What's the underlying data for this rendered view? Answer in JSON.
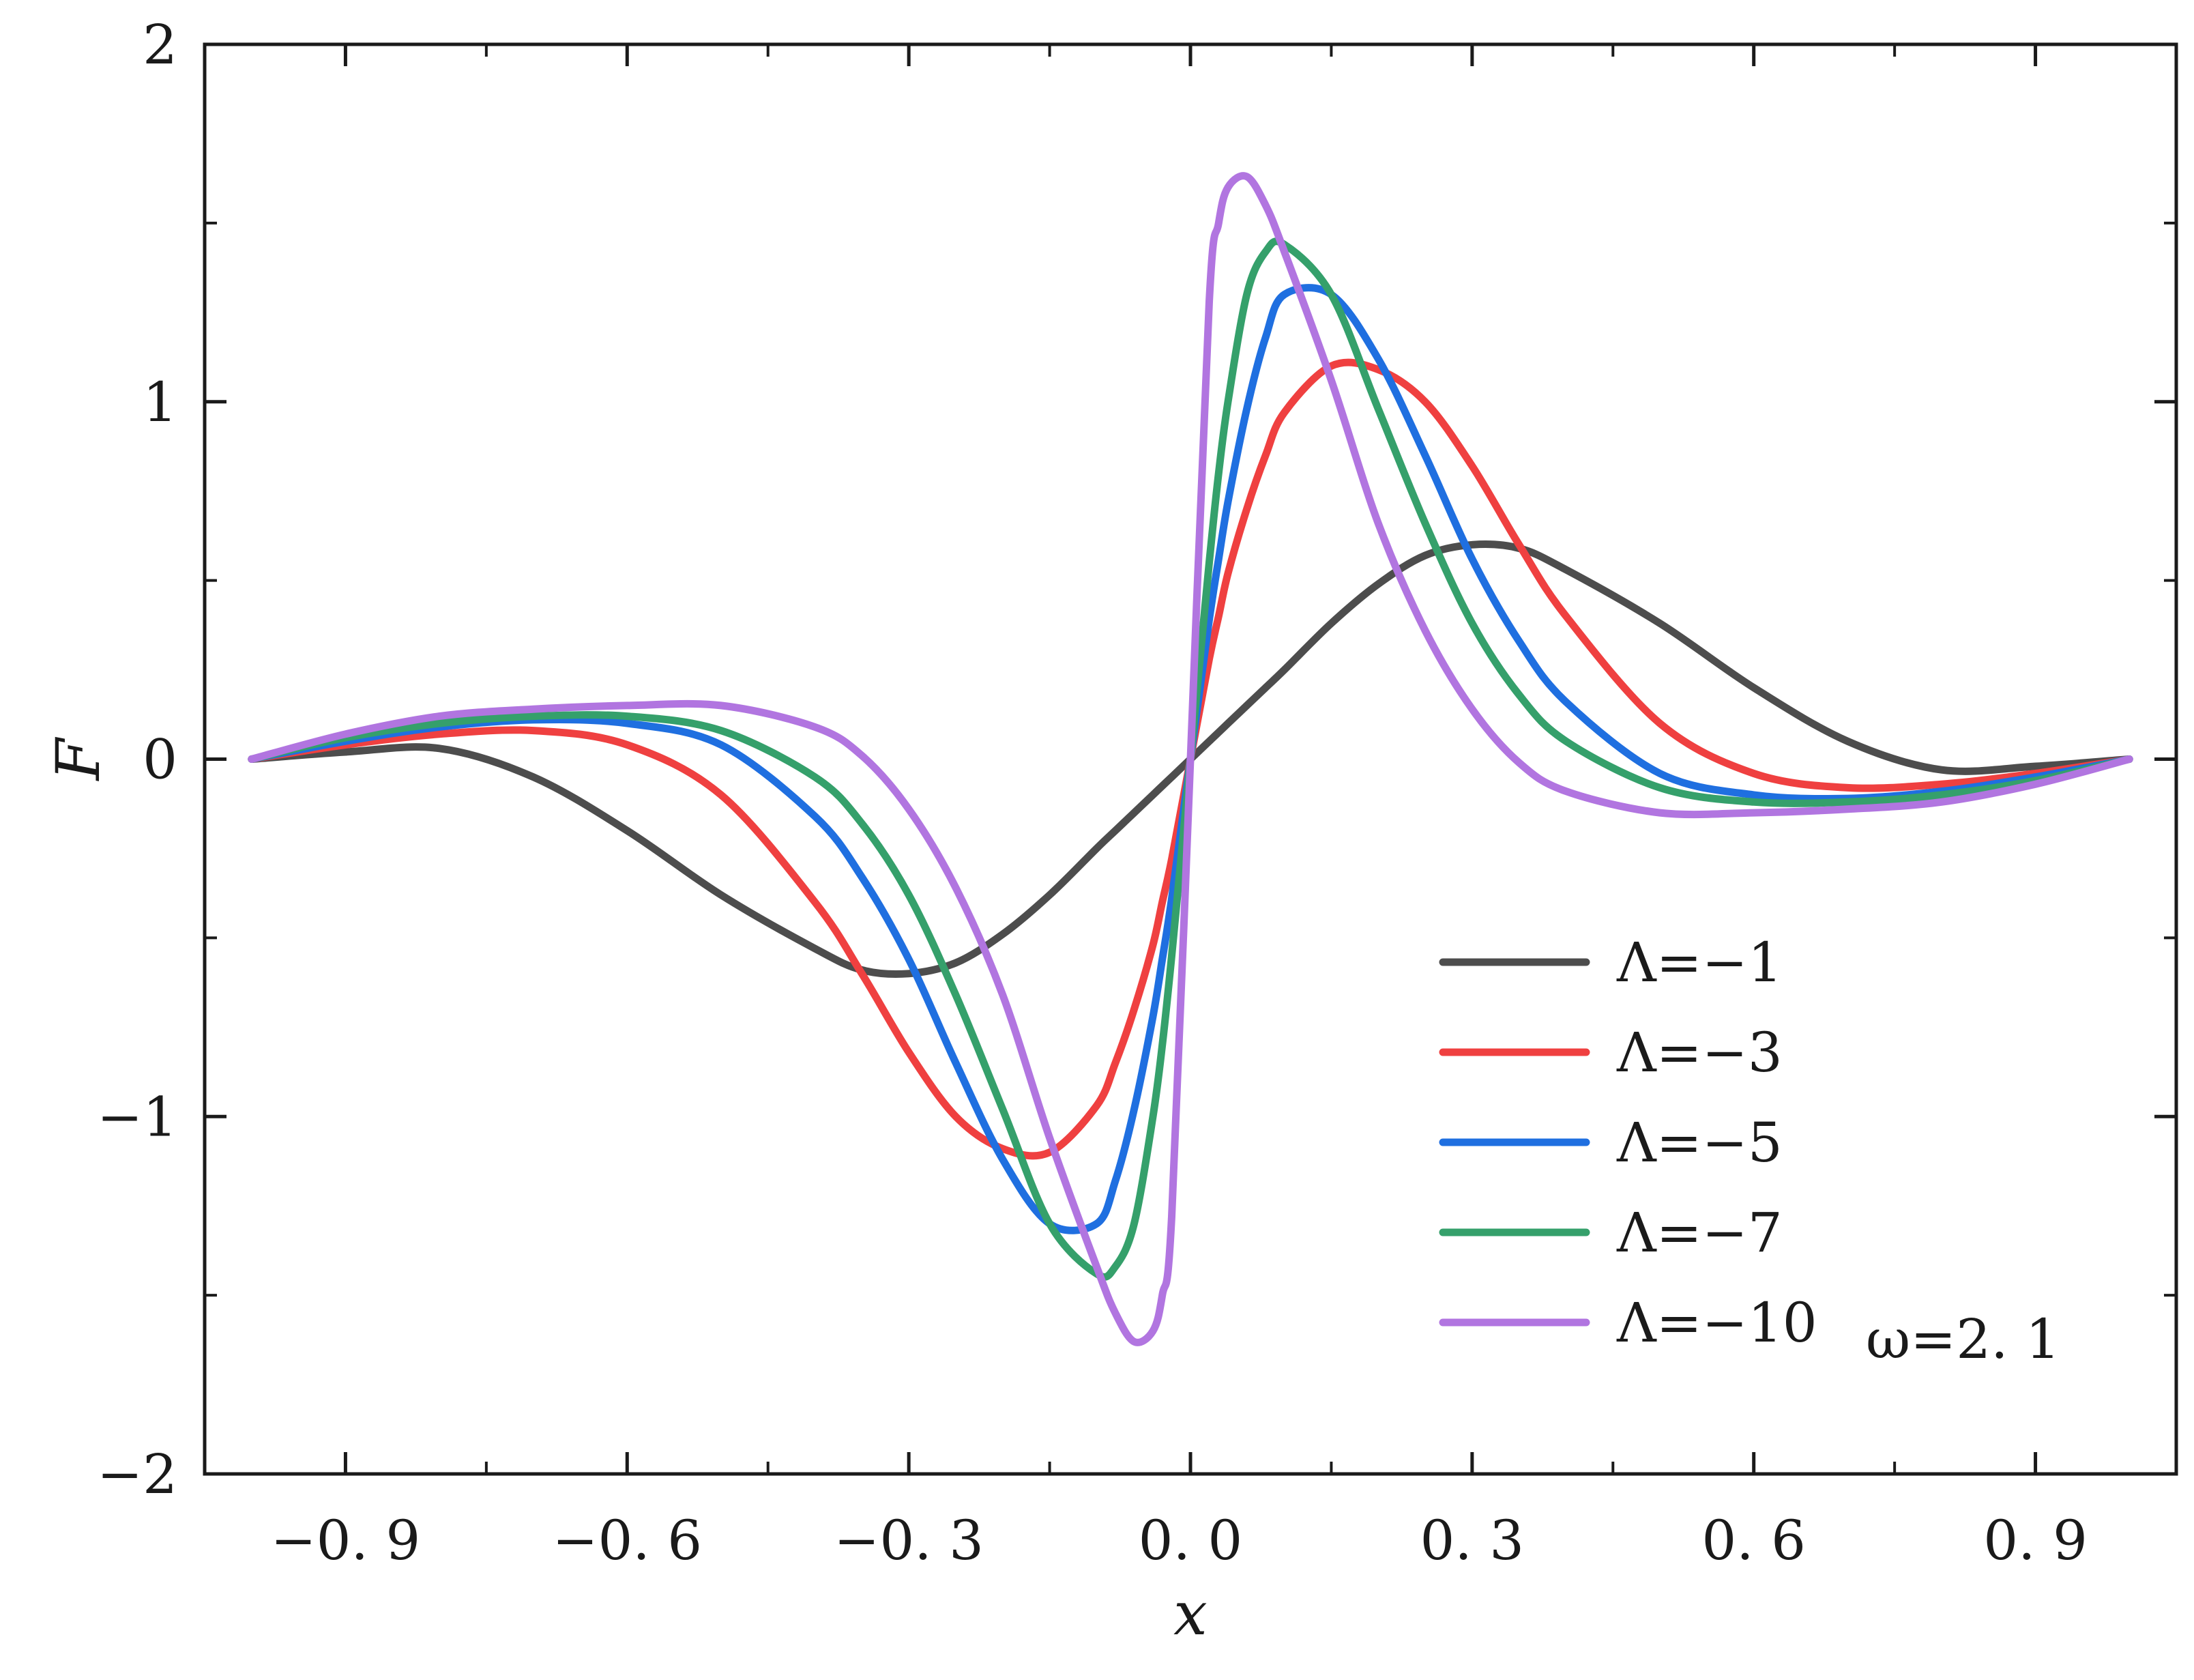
{
  "chart_data": {
    "type": "line",
    "xlabel": "x",
    "ylabel": "F",
    "xlim": [
      -1.05,
      1.05
    ],
    "ylim": [
      -2,
      2
    ],
    "x_ticks": [
      -0.9,
      -0.6,
      -0.3,
      0.0,
      0.3,
      0.6,
      0.9
    ],
    "x_tick_labels": [
      "−0. 9",
      "−0. 6",
      "−0. 3",
      "0. 0",
      "0. 3",
      "0. 6",
      "0. 9"
    ],
    "y_ticks": [
      -2,
      -1,
      0,
      1,
      2
    ],
    "y_tick_labels": [
      "−2",
      "−1",
      "0",
      "1",
      "2"
    ],
    "grid": false,
    "legend_position": "bottom-right",
    "annotation": "ω=2. 1",
    "x": [
      -1.0,
      -0.9,
      -0.8,
      -0.7,
      -0.6,
      -0.5,
      -0.4,
      -0.35,
      -0.3,
      -0.25,
      -0.2,
      -0.15,
      -0.1,
      -0.08,
      -0.06,
      -0.04,
      -0.03,
      -0.02,
      0.0,
      0.02,
      0.03,
      0.04,
      0.06,
      0.08,
      0.1,
      0.15,
      0.2,
      0.25,
      0.3,
      0.35,
      0.4,
      0.5,
      0.6,
      0.7,
      0.8,
      0.9,
      1.0
    ],
    "series": [
      {
        "name": "Λ=−1",
        "color": "#4d4d4d",
        "values": [
          0.0,
          0.02,
          0.03,
          -0.05,
          -0.2,
          -0.38,
          -0.53,
          -0.59,
          -0.6,
          -0.57,
          -0.49,
          -0.38,
          -0.25,
          -0.2,
          -0.15,
          -0.1,
          -0.075,
          -0.05,
          0.0,
          0.05,
          0.075,
          0.1,
          0.15,
          0.2,
          0.25,
          0.38,
          0.49,
          0.57,
          0.6,
          0.59,
          0.53,
          0.38,
          0.2,
          0.05,
          -0.03,
          -0.02,
          0.0
        ]
      },
      {
        "name": "Λ=−3",
        "color": "#ef4040",
        "values": [
          0.0,
          0.04,
          0.07,
          0.08,
          0.04,
          -0.1,
          -0.4,
          -0.6,
          -0.82,
          -1.0,
          -1.09,
          -1.1,
          -0.97,
          -0.85,
          -0.7,
          -0.52,
          -0.4,
          -0.28,
          0.0,
          0.28,
          0.4,
          0.52,
          0.7,
          0.85,
          0.97,
          1.1,
          1.09,
          1.0,
          0.82,
          0.6,
          0.4,
          0.1,
          -0.04,
          -0.08,
          -0.07,
          -0.04,
          0.0
        ]
      },
      {
        "name": "Λ=−5",
        "color": "#1f6fe0",
        "values": [
          0.0,
          0.05,
          0.09,
          0.11,
          0.1,
          0.04,
          -0.16,
          -0.33,
          -0.56,
          -0.85,
          -1.12,
          -1.3,
          -1.3,
          -1.18,
          -0.98,
          -0.72,
          -0.56,
          -0.39,
          0.0,
          0.39,
          0.56,
          0.72,
          0.98,
          1.18,
          1.3,
          1.3,
          1.12,
          0.85,
          0.56,
          0.33,
          0.16,
          -0.04,
          -0.1,
          -0.11,
          -0.09,
          -0.05,
          0.0
        ]
      },
      {
        "name": "Λ=−7",
        "color": "#35a06b",
        "values": [
          0.0,
          0.06,
          0.1,
          0.12,
          0.12,
          0.08,
          -0.05,
          -0.18,
          -0.38,
          -0.66,
          -0.98,
          -1.3,
          -1.44,
          -1.42,
          -1.3,
          -1.0,
          -0.8,
          -0.55,
          0.0,
          0.55,
          0.8,
          1.0,
          1.3,
          1.42,
          1.44,
          1.3,
          0.98,
          0.66,
          0.38,
          0.18,
          0.05,
          -0.08,
          -0.12,
          -0.12,
          -0.1,
          -0.06,
          0.0
        ]
      },
      {
        "name": "Λ=−10",
        "color": "#b175e0",
        "values": [
          0.0,
          0.07,
          0.12,
          0.14,
          0.15,
          0.15,
          0.09,
          0.01,
          -0.14,
          -0.36,
          -0.66,
          -1.06,
          -1.42,
          -1.55,
          -1.63,
          -1.6,
          -1.5,
          -1.28,
          0.0,
          1.28,
          1.5,
          1.6,
          1.63,
          1.55,
          1.42,
          1.06,
          0.66,
          0.36,
          0.14,
          -0.01,
          -0.09,
          -0.15,
          -0.15,
          -0.14,
          -0.12,
          -0.07,
          0.0
        ]
      }
    ]
  }
}
